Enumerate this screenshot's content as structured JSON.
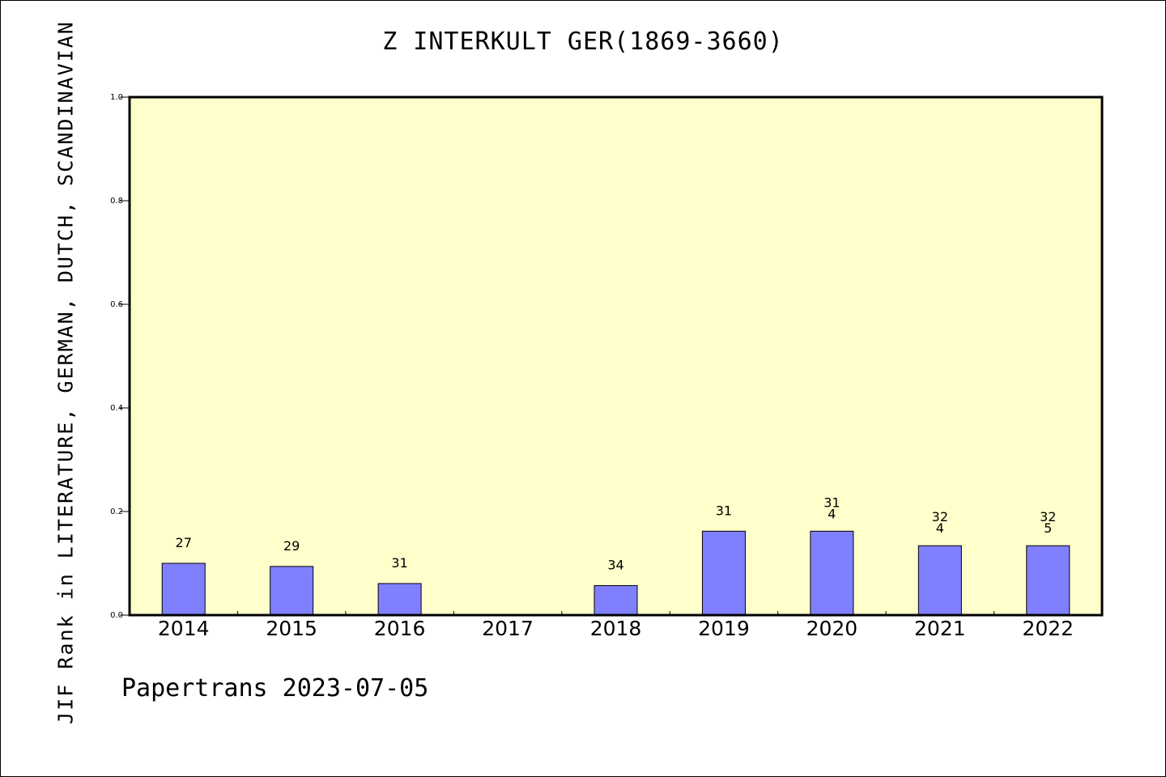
{
  "title": "Z INTERKULT GER(1869-3660)",
  "footer": "Papertrans 2023-07-05",
  "colors": {
    "plot_background": "#ffffcc",
    "bar_fill": "#8080ff",
    "bar_stroke": "#000000"
  },
  "chart_data": {
    "type": "bar",
    "title": "Z INTERKULT GER(1869-3660)",
    "xlabel": "",
    "ylabel": "JIF Rank in LITERATURE, GERMAN, DUTCH, SCANDINAVIAN",
    "ylim": [
      0,
      1.0
    ],
    "yticks": [
      "0.0",
      "0.2",
      "0.4",
      "0.6",
      "0.8",
      "1.0"
    ],
    "grid": false,
    "categories": [
      "2014",
      "2015",
      "2016",
      "2017",
      "2018",
      "2019",
      "2020",
      "2021",
      "2022"
    ],
    "values": [
      0.1,
      0.094,
      0.061,
      null,
      0.057,
      0.162,
      0.162,
      0.134,
      0.134
    ],
    "labels": [
      [
        "27"
      ],
      [
        "29"
      ],
      [
        "31"
      ],
      [],
      [
        "34"
      ],
      [
        "31"
      ],
      [
        "31",
        "4"
      ],
      [
        "32",
        "4"
      ],
      [
        "32",
        "5"
      ]
    ]
  }
}
